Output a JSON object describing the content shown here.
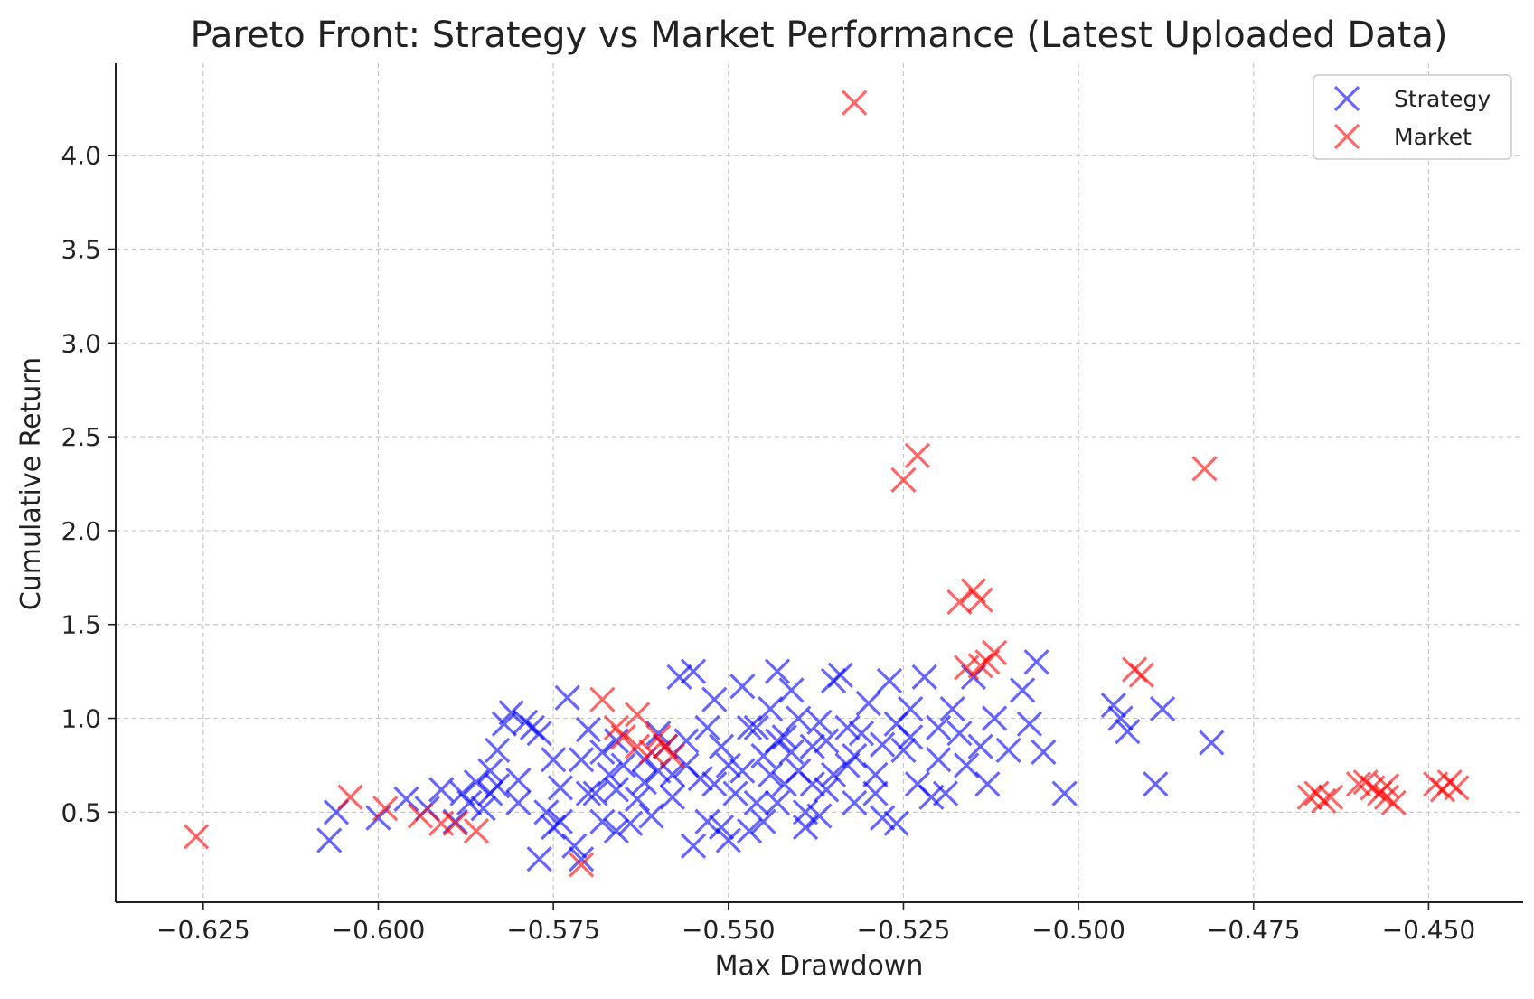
{
  "chart_data": {
    "type": "scatter",
    "title": "Pareto Front: Strategy vs Market Performance (Latest Uploaded Data)",
    "xlabel": "Max Drawdown",
    "ylabel": "Cumulative Return",
    "xlim": [
      -0.6375,
      -0.4365
    ],
    "ylim": [
      0.02,
      4.49
    ],
    "x_ticks": [
      -0.625,
      -0.6,
      -0.575,
      -0.55,
      -0.525,
      -0.5,
      -0.475,
      -0.45
    ],
    "x_tick_labels": [
      "−0.625",
      "−0.600",
      "−0.575",
      "−0.550",
      "−0.525",
      "−0.500",
      "−0.475",
      "−0.450"
    ],
    "y_ticks": [
      0.5,
      1.0,
      1.5,
      2.0,
      2.5,
      3.0,
      3.5,
      4.0
    ],
    "y_tick_labels": [
      "0.5",
      "1.0",
      "1.5",
      "2.0",
      "2.5",
      "3.0",
      "3.5",
      "4.0"
    ],
    "grid": true,
    "legend_position": "top-right",
    "marker": "x",
    "series": [
      {
        "name": "Strategy",
        "color": "#0000ff",
        "points": [
          [
            -0.607,
            0.35
          ],
          [
            -0.606,
            0.5
          ],
          [
            -0.6,
            0.47
          ],
          [
            -0.596,
            0.57
          ],
          [
            -0.593,
            0.52
          ],
          [
            -0.591,
            0.62
          ],
          [
            -0.589,
            0.45
          ],
          [
            -0.588,
            0.6
          ],
          [
            -0.587,
            0.55
          ],
          [
            -0.586,
            0.66
          ],
          [
            -0.585,
            0.52
          ],
          [
            -0.584,
            0.6
          ],
          [
            -0.584,
            0.72
          ],
          [
            -0.583,
            0.83
          ],
          [
            -0.582,
            0.97
          ],
          [
            -0.581,
            1.03
          ],
          [
            -0.583,
            0.64
          ],
          [
            -0.58,
            0.55
          ],
          [
            -0.58,
            0.67
          ],
          [
            -0.579,
            0.98
          ],
          [
            -0.578,
            0.95
          ],
          [
            -0.577,
            0.92
          ],
          [
            -0.576,
            0.5
          ],
          [
            -0.575,
            0.42
          ],
          [
            -0.575,
            0.78
          ],
          [
            -0.574,
            0.63
          ],
          [
            -0.573,
            1.11
          ],
          [
            -0.572,
            0.32
          ],
          [
            -0.571,
            0.78
          ],
          [
            -0.57,
            0.94
          ],
          [
            -0.569,
            0.6
          ],
          [
            -0.568,
            0.82
          ],
          [
            -0.567,
            0.7
          ],
          [
            -0.566,
            0.62
          ],
          [
            -0.565,
            0.75
          ],
          [
            -0.564,
            0.44
          ],
          [
            -0.563,
            0.57
          ],
          [
            -0.562,
            0.66
          ],
          [
            -0.561,
            0.48
          ],
          [
            -0.56,
            0.92
          ],
          [
            -0.559,
            0.85
          ],
          [
            -0.558,
            0.58
          ],
          [
            -0.557,
            1.22
          ],
          [
            -0.556,
            0.75
          ],
          [
            -0.555,
            1.25
          ],
          [
            -0.554,
            0.68
          ],
          [
            -0.553,
            0.45
          ],
          [
            -0.553,
            0.95
          ],
          [
            -0.552,
            1.1
          ],
          [
            -0.551,
            0.85
          ],
          [
            -0.55,
            0.75
          ],
          [
            -0.549,
            0.6
          ],
          [
            -0.548,
            1.17
          ],
          [
            -0.547,
            0.95
          ],
          [
            -0.546,
            0.55
          ],
          [
            -0.545,
            0.8
          ],
          [
            -0.544,
            1.05
          ],
          [
            -0.543,
            1.25
          ],
          [
            -0.542,
            0.65
          ],
          [
            -0.542,
            0.9
          ],
          [
            -0.541,
            1.15
          ],
          [
            -0.54,
            0.72
          ],
          [
            -0.539,
            0.5
          ],
          [
            -0.538,
            0.85
          ],
          [
            -0.537,
            0.98
          ],
          [
            -0.536,
            0.62
          ],
          [
            -0.535,
            1.2
          ],
          [
            -0.534,
            1.23
          ],
          [
            -0.533,
            0.75
          ],
          [
            -0.532,
            0.55
          ],
          [
            -0.531,
            0.92
          ],
          [
            -0.53,
            1.08
          ],
          [
            -0.529,
            0.7
          ],
          [
            -0.528,
            0.47
          ],
          [
            -0.527,
            1.2
          ],
          [
            -0.526,
            0.97
          ],
          [
            -0.525,
            0.83
          ],
          [
            -0.524,
            1.05
          ],
          [
            -0.523,
            0.65
          ],
          [
            -0.522,
            1.22
          ],
          [
            -0.521,
            0.58
          ],
          [
            -0.52,
            0.95
          ],
          [
            -0.519,
            0.6
          ],
          [
            -0.518,
            1.05
          ],
          [
            -0.517,
            0.92
          ],
          [
            -0.516,
            0.75
          ],
          [
            -0.515,
            1.22
          ],
          [
            -0.514,
            0.85
          ],
          [
            -0.513,
            0.65
          ],
          [
            -0.512,
            1.0
          ],
          [
            -0.51,
            0.83
          ],
          [
            -0.508,
            1.15
          ],
          [
            -0.507,
            0.97
          ],
          [
            -0.506,
            1.3
          ],
          [
            -0.505,
            0.82
          ],
          [
            -0.502,
            0.6
          ],
          [
            -0.495,
            1.07
          ],
          [
            -0.494,
            1.0
          ],
          [
            -0.493,
            0.93
          ],
          [
            -0.489,
            0.65
          ],
          [
            -0.488,
            1.05
          ],
          [
            -0.481,
            0.87
          ],
          [
            -0.562,
            0.78
          ],
          [
            -0.556,
            0.88
          ],
          [
            -0.548,
            0.72
          ],
          [
            -0.546,
            0.95
          ],
          [
            -0.544,
            0.7
          ],
          [
            -0.541,
            0.82
          ],
          [
            -0.538,
            0.65
          ],
          [
            -0.536,
            0.88
          ],
          [
            -0.533,
            0.95
          ],
          [
            -0.54,
            1.0
          ],
          [
            -0.543,
            0.88
          ],
          [
            -0.552,
            0.65
          ],
          [
            -0.558,
            0.7
          ],
          [
            -0.566,
            0.88
          ],
          [
            -0.57,
            0.6
          ],
          [
            -0.574,
            0.45
          ],
          [
            -0.568,
            0.45
          ],
          [
            -0.56,
            0.72
          ],
          [
            -0.547,
            0.4
          ],
          [
            -0.545,
            0.45
          ],
          [
            -0.539,
            0.42
          ],
          [
            -0.537,
            0.48
          ],
          [
            -0.529,
            0.6
          ],
          [
            -0.526,
            0.44
          ],
          [
            -0.555,
            0.32
          ],
          [
            -0.55,
            0.35
          ],
          [
            -0.551,
            0.42
          ],
          [
            -0.566,
            0.4
          ],
          [
            -0.571,
            0.25
          ],
          [
            -0.577,
            0.25
          ],
          [
            -0.543,
            0.55
          ],
          [
            -0.535,
            0.7
          ],
          [
            -0.532,
            0.8
          ],
          [
            -0.528,
            0.86
          ],
          [
            -0.524,
            0.9
          ],
          [
            -0.52,
            0.78
          ]
        ]
      },
      {
        "name": "Market",
        "color": "#ff0000",
        "points": [
          [
            -0.626,
            0.37
          ],
          [
            -0.604,
            0.58
          ],
          [
            -0.599,
            0.52
          ],
          [
            -0.594,
            0.48
          ],
          [
            -0.591,
            0.44
          ],
          [
            -0.589,
            0.44
          ],
          [
            -0.586,
            0.4
          ],
          [
            -0.571,
            0.22
          ],
          [
            -0.568,
            1.1
          ],
          [
            -0.566,
            0.95
          ],
          [
            -0.565,
            0.9
          ],
          [
            -0.563,
            1.02
          ],
          [
            -0.563,
            0.85
          ],
          [
            -0.561,
            0.82
          ],
          [
            -0.56,
            0.9
          ],
          [
            -0.559,
            0.85
          ],
          [
            -0.558,
            0.8
          ],
          [
            -0.532,
            4.28
          ],
          [
            -0.525,
            2.27
          ],
          [
            -0.523,
            2.4
          ],
          [
            -0.517,
            1.62
          ],
          [
            -0.515,
            1.68
          ],
          [
            -0.514,
            1.63
          ],
          [
            -0.516,
            1.27
          ],
          [
            -0.514,
            1.28
          ],
          [
            -0.513,
            1.3
          ],
          [
            -0.512,
            1.35
          ],
          [
            -0.492,
            1.26
          ],
          [
            -0.491,
            1.23
          ],
          [
            -0.482,
            2.33
          ],
          [
            -0.467,
            0.58
          ],
          [
            -0.466,
            0.6
          ],
          [
            -0.465,
            0.56
          ],
          [
            -0.464,
            0.58
          ],
          [
            -0.46,
            0.65
          ],
          [
            -0.459,
            0.66
          ],
          [
            -0.458,
            0.63
          ],
          [
            -0.457,
            0.6
          ],
          [
            -0.456,
            0.58
          ],
          [
            -0.456,
            0.64
          ],
          [
            -0.455,
            0.55
          ],
          [
            -0.449,
            0.65
          ],
          [
            -0.448,
            0.62
          ],
          [
            -0.447,
            0.66
          ],
          [
            -0.446,
            0.63
          ]
        ]
      }
    ]
  }
}
